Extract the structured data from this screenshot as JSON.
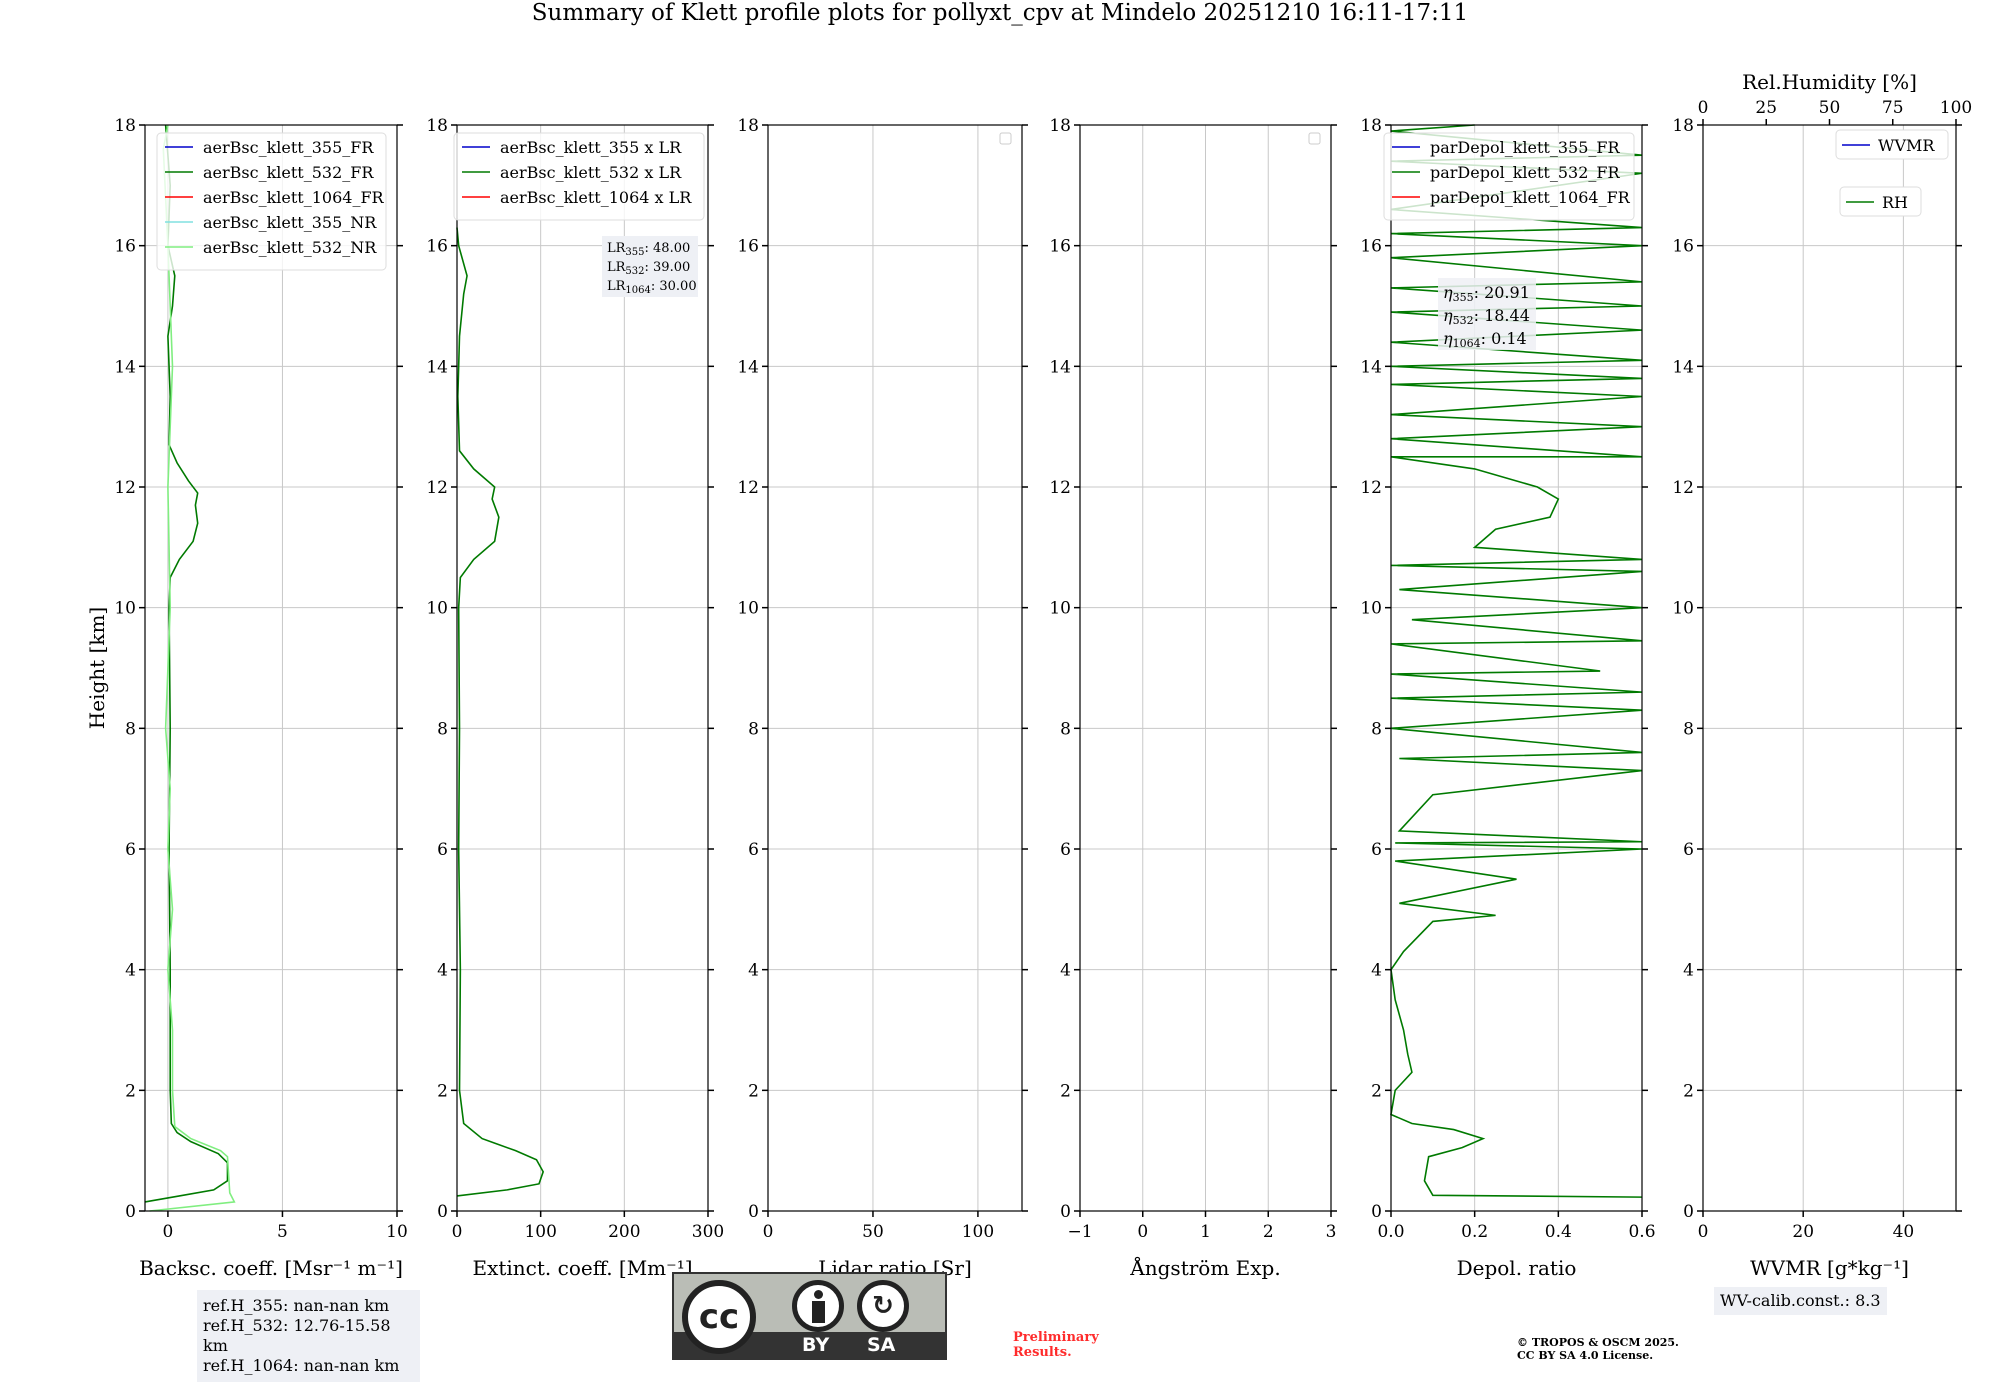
{
  "title": "Summary of Klett profile plots for pollyxt_cpv at Mindelo 20251210 16:11-17:11",
  "chart_data": [
    {
      "type": "line",
      "panel": "backscatter",
      "xlabel": "Backsc. coeff. [Msr⁻¹ m⁻¹]",
      "ylabel": "Height [km]",
      "xlim": [
        -1,
        10
      ],
      "ylim": [
        0,
        18
      ],
      "xticks": [
        0,
        5,
        10
      ],
      "yticks": [
        0,
        2,
        4,
        6,
        8,
        10,
        12,
        14,
        16,
        18
      ],
      "grid": true,
      "legend": "top-right",
      "series": [
        {
          "name": "aerBsc_klett_355_FR",
          "color": "#0000cc",
          "points": []
        },
        {
          "name": "aerBsc_klett_532_FR",
          "color": "#007a00",
          "points": [
            [
              -1,
              0.15
            ],
            [
              0.5,
              0.25
            ],
            [
              2.0,
              0.35
            ],
            [
              2.6,
              0.5
            ],
            [
              2.6,
              0.8
            ],
            [
              2.2,
              0.95
            ],
            [
              1.0,
              1.15
            ],
            [
              0.4,
              1.3
            ],
            [
              0.15,
              1.45
            ],
            [
              0.1,
              2
            ],
            [
              0.1,
              4
            ],
            [
              0.05,
              6
            ],
            [
              0.1,
              8
            ],
            [
              0.05,
              10
            ],
            [
              0.1,
              10.5
            ],
            [
              0.5,
              10.8
            ],
            [
              1.1,
              11.1
            ],
            [
              1.3,
              11.4
            ],
            [
              1.2,
              11.7
            ],
            [
              1.3,
              11.9
            ],
            [
              0.9,
              12.1
            ],
            [
              0.4,
              12.4
            ],
            [
              0.05,
              12.7
            ],
            [
              0.1,
              13.5
            ],
            [
              0.0,
              14.5
            ],
            [
              0.2,
              15
            ],
            [
              0.3,
              15.5
            ],
            [
              0.0,
              16
            ],
            [
              0.1,
              17
            ],
            [
              -0.1,
              18
            ]
          ]
        },
        {
          "name": "aerBsc_klett_1064_FR",
          "color": "#ff0000",
          "points": []
        },
        {
          "name": "aerBsc_klett_355_NR",
          "color": "#80e0e0",
          "points": []
        },
        {
          "name": "aerBsc_klett_532_NR",
          "color": "#80ee80",
          "points": [
            [
              -0.8,
              0.0
            ],
            [
              2.9,
              0.15
            ],
            [
              2.7,
              0.3
            ],
            [
              2.6,
              0.9
            ],
            [
              2.3,
              1.0
            ],
            [
              1.0,
              1.2
            ],
            [
              0.3,
              1.4
            ],
            [
              0.2,
              2
            ],
            [
              0.2,
              3
            ],
            [
              0.0,
              4
            ],
            [
              0.2,
              5
            ],
            [
              0.0,
              6
            ],
            [
              0.1,
              7
            ],
            [
              -0.1,
              8
            ],
            [
              0.1,
              10
            ],
            [
              0.0,
              12
            ],
            [
              0.2,
              14
            ],
            [
              0.0,
              16
            ],
            [
              -0.2,
              17.6
            ],
            [
              0.0,
              18
            ]
          ]
        }
      ],
      "annotation": [
        "ref.H_355: nan-nan km",
        "ref.H_532: 12.76-15.58 km",
        "ref.H_1064: nan-nan km"
      ]
    },
    {
      "type": "line",
      "panel": "extinction",
      "xlabel": "Extinct. coeff. [Mm⁻¹]",
      "xlim": [
        0,
        300
      ],
      "ylim": [
        0,
        18
      ],
      "xticks": [
        0,
        100,
        200,
        300
      ],
      "yticks": [
        0,
        2,
        4,
        6,
        8,
        10,
        12,
        14,
        16,
        18
      ],
      "grid": true,
      "legend": "top-right",
      "series": [
        {
          "name": "aerBsc_klett_355 x LR",
          "color": "#0000cc",
          "points": []
        },
        {
          "name": "aerBsc_klett_532 x LR",
          "color": "#007a00",
          "points": [
            [
              0,
              0.25
            ],
            [
              60,
              0.35
            ],
            [
              98,
              0.45
            ],
            [
              103,
              0.65
            ],
            [
              95,
              0.85
            ],
            [
              70,
              1.0
            ],
            [
              30,
              1.2
            ],
            [
              8,
              1.45
            ],
            [
              3,
              2
            ],
            [
              4,
              4
            ],
            [
              2,
              6
            ],
            [
              3,
              8
            ],
            [
              2,
              10
            ],
            [
              4,
              10.5
            ],
            [
              20,
              10.8
            ],
            [
              45,
              11.1
            ],
            [
              50,
              11.5
            ],
            [
              42,
              11.8
            ],
            [
              45,
              12
            ],
            [
              20,
              12.3
            ],
            [
              3,
              12.6
            ],
            [
              1,
              13.5
            ],
            [
              3,
              14.5
            ],
            [
              8,
              15.2
            ],
            [
              12,
              15.5
            ],
            [
              2,
              16
            ],
            [
              0,
              16.3
            ]
          ]
        },
        {
          "name": "aerBsc_klett_1064 x LR",
          "color": "#ff0000",
          "points": []
        }
      ],
      "annotation": [
        {
          "label": "LR",
          "sub": "355",
          "value": ": 48.00"
        },
        {
          "label": "LR",
          "sub": "532",
          "value": ": 39.00"
        },
        {
          "label": "LR",
          "sub": "1064",
          "value": ": 30.00"
        }
      ]
    },
    {
      "type": "line",
      "panel": "lidar-ratio",
      "xlabel": "Lidar ratio [Sr]",
      "xlim": [
        0,
        121
      ],
      "ylim": [
        0,
        18
      ],
      "xticks": [
        0,
        50,
        100
      ],
      "yticks": [
        0,
        2,
        4,
        6,
        8,
        10,
        12,
        14,
        16,
        18
      ],
      "grid": true,
      "legend": "top-right (empty)",
      "series": []
    },
    {
      "type": "line",
      "panel": "angstrom",
      "xlabel": "Ångström Exp.",
      "xlim": [
        -1,
        3
      ],
      "ylim": [
        0,
        18
      ],
      "xticks": [
        -1,
        0,
        1,
        2,
        3
      ],
      "yticks": [
        0,
        2,
        4,
        6,
        8,
        10,
        12,
        14,
        16,
        18
      ],
      "grid": true,
      "legend": "top-right (empty)",
      "series": []
    },
    {
      "type": "line",
      "panel": "depol",
      "xlabel": "Depol. ratio",
      "xlim": [
        0,
        0.6
      ],
      "ylim": [
        0,
        18
      ],
      "xticks": [
        0.0,
        0.2,
        0.4,
        0.6
      ],
      "xticklabels": [
        "0.0",
        "0.2",
        "0.4",
        "0.6"
      ],
      "yticks": [
        0,
        2,
        4,
        6,
        8,
        10,
        12,
        14,
        16,
        18
      ],
      "grid": true,
      "legend": "top-right",
      "series": [
        {
          "name": "parDepol_klett_355_FR",
          "color": "#0000cc",
          "points": []
        },
        {
          "name": "parDepol_klett_532_FR",
          "color": "#007a00",
          "points": [
            [
              0.6,
              0.23
            ],
            [
              0.1,
              0.26
            ],
            [
              0.08,
              0.5
            ],
            [
              0.09,
              0.9
            ],
            [
              0.17,
              1.05
            ],
            [
              0.22,
              1.2
            ],
            [
              0.15,
              1.35
            ],
            [
              0.05,
              1.45
            ],
            [
              0.0,
              1.6
            ],
            [
              0.01,
              2
            ],
            [
              0.05,
              2.3
            ],
            [
              0.04,
              2.6
            ],
            [
              0.03,
              3
            ],
            [
              0.01,
              3.5
            ],
            [
              0.0,
              4
            ],
            [
              0.03,
              4.3
            ],
            [
              0.1,
              4.8
            ],
            [
              0.25,
              4.9
            ],
            [
              0.02,
              5.1
            ],
            [
              0.3,
              5.5
            ],
            [
              0.01,
              5.8
            ],
            [
              0.6,
              6.0
            ],
            [
              0.01,
              6.1
            ],
            [
              0.6,
              6.12
            ],
            [
              0.02,
              6.3
            ],
            [
              0.1,
              6.9
            ],
            [
              0.6,
              7.3
            ],
            [
              0.02,
              7.5
            ],
            [
              0.6,
              7.6
            ],
            [
              0.0,
              8.0
            ],
            [
              0.6,
              8.3
            ],
            [
              0.0,
              8.5
            ],
            [
              0.6,
              8.6
            ],
            [
              0.0,
              8.9
            ],
            [
              0.5,
              8.95
            ],
            [
              0.0,
              9.4
            ],
            [
              0.6,
              9.45
            ],
            [
              0.05,
              9.8
            ],
            [
              0.6,
              10.0
            ],
            [
              0.02,
              10.3
            ],
            [
              0.6,
              10.6
            ],
            [
              0.0,
              10.7
            ],
            [
              0.6,
              10.8
            ],
            [
              0.2,
              11.0
            ],
            [
              0.25,
              11.3
            ],
            [
              0.38,
              11.5
            ],
            [
              0.4,
              11.8
            ],
            [
              0.35,
              12.0
            ],
            [
              0.2,
              12.3
            ],
            [
              0.0,
              12.5
            ],
            [
              0.6,
              12.5
            ],
            [
              0.0,
              12.8
            ],
            [
              0.6,
              13.0
            ],
            [
              0.0,
              13.2
            ],
            [
              0.6,
              13.5
            ],
            [
              0.0,
              13.7
            ],
            [
              0.6,
              13.8
            ],
            [
              0.0,
              14.0
            ],
            [
              0.6,
              14.1
            ],
            [
              0.0,
              14.4
            ],
            [
              0.6,
              14.6
            ],
            [
              0.0,
              14.9
            ],
            [
              0.6,
              15.0
            ],
            [
              0.0,
              15.3
            ],
            [
              0.6,
              15.4
            ],
            [
              0.0,
              15.8
            ],
            [
              0.6,
              16.0
            ],
            [
              0.0,
              16.2
            ],
            [
              0.6,
              16.3
            ],
            [
              0.0,
              16.6
            ],
            [
              0.6,
              17.2
            ],
            [
              0.0,
              17.4
            ],
            [
              0.6,
              17.5
            ],
            [
              0.0,
              17.9
            ],
            [
              0.2,
              18
            ]
          ]
        },
        {
          "name": "parDepol_klett_1064_FR",
          "color": "#ff0000",
          "points": []
        }
      ],
      "annotation": [
        {
          "label": "η",
          "sub": "355",
          "value": ": 20.91"
        },
        {
          "label": "η",
          "sub": "532",
          "value": ": 18.44"
        },
        {
          "label": "η",
          "sub": "1064",
          "value": ": 0.14"
        }
      ]
    },
    {
      "type": "line",
      "panel": "wvmr",
      "xlabel": "WVMR [g*kg⁻¹]",
      "xlim": [
        0,
        50.5
      ],
      "ylim": [
        0,
        18
      ],
      "xticks": [
        0,
        20,
        40
      ],
      "yticks": [
        0,
        2,
        4,
        6,
        8,
        10,
        12,
        14,
        16,
        18
      ],
      "top_xlabel": "Rel.Humidity [%]",
      "top_xlim": [
        0,
        100
      ],
      "top_xticks": [
        0,
        25,
        50,
        75,
        100
      ],
      "grid": true,
      "series": [
        {
          "name": "WVMR",
          "color": "#0000cc",
          "points": []
        },
        {
          "name": "RH",
          "color": "#007a00",
          "points": []
        }
      ],
      "annotation": "WV-calib.const.: 8.3"
    }
  ],
  "footer": {
    "preliminary": [
      "Preliminary",
      "Results."
    ],
    "copyright": [
      "© TROPOS & OSCM 2025.",
      "CC BY SA 4.0 License."
    ],
    "license_badge": {
      "by": "BY",
      "sa": "SA",
      "cc": "cc"
    }
  }
}
